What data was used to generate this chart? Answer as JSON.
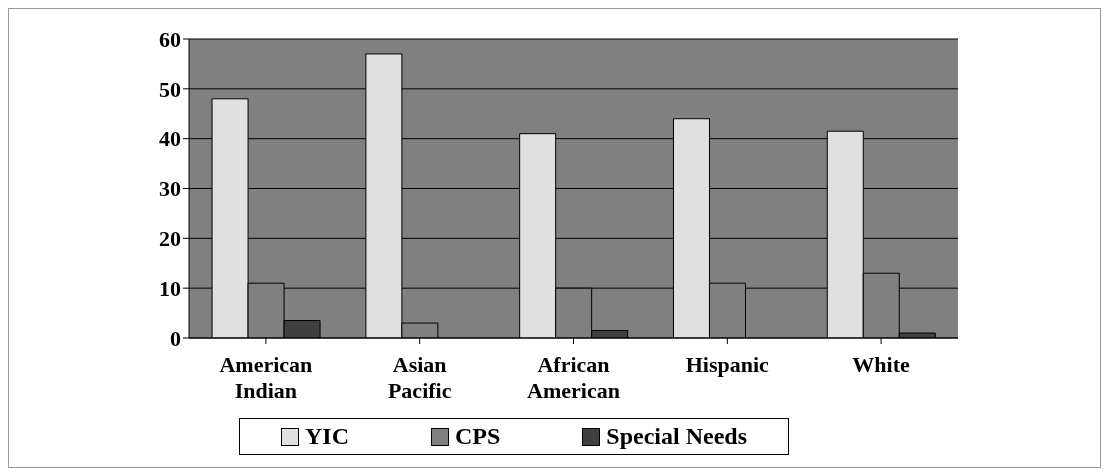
{
  "chart_data": {
    "type": "bar",
    "categories": [
      "American Indian",
      "Asian Pacific",
      "African American",
      "Hispanic",
      "White"
    ],
    "series": [
      {
        "name": "YIC",
        "color": "#e0e0e0",
        "values": [
          48,
          57,
          41,
          44,
          41.5
        ]
      },
      {
        "name": "CPS",
        "color": "#808080",
        "values": [
          11,
          3,
          10,
          11,
          13
        ]
      },
      {
        "name": "Special Needs",
        "color": "#404040",
        "values": [
          3.5,
          0,
          1.5,
          0,
          1
        ]
      }
    ],
    "ylim": [
      0,
      60
    ],
    "yticks": [
      0,
      10,
      20,
      30,
      40,
      50,
      60
    ],
    "grid": "y",
    "legend": "bottom"
  }
}
